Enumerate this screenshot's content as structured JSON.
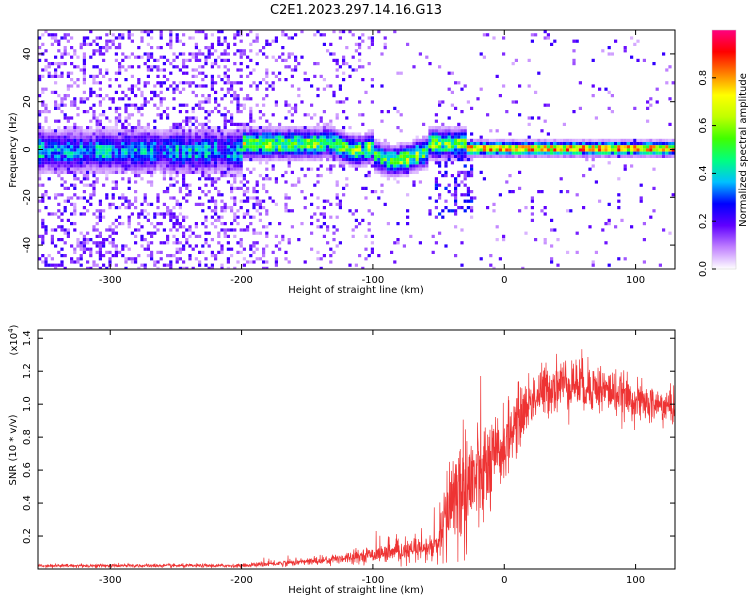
{
  "figure": {
    "title": "C2E1.2023.297.14.16.G13"
  },
  "chart_data": [
    {
      "type": "heatmap",
      "xlabel": "Height of straight line (km)",
      "ylabel": "Frequency (Hz)",
      "xlim": [
        -355,
        130
      ],
      "ylim": [
        -50,
        50
      ],
      "xticks": [
        -300,
        -200,
        -100,
        0,
        100
      ],
      "yticks": [
        -40,
        -20,
        0,
        20,
        40
      ],
      "colorbar": {
        "label": "Normalized spectral amplitude",
        "range": [
          0,
          1
        ],
        "ticks": [
          0.0,
          0.2,
          0.4,
          0.6,
          0.8
        ],
        "colors": [
          "#ffffff",
          "#c080ff",
          "#6000ff",
          "#0000ff",
          "#00c0ff",
          "#00ff80",
          "#40ff00",
          "#c0ff00",
          "#ffff00",
          "#ff8000",
          "#ff0000",
          "#ff0080"
        ]
      }
    },
    {
      "type": "line",
      "xlabel": "Height of straight line (km)",
      "ylabel": "SNR (10 * v/v)",
      "y_multiplier": "(x10",
      "y_multiplier_exp": "4",
      "y_multiplier_close": ")",
      "xlim": [
        -355,
        130
      ],
      "ylim": [
        0,
        1.45
      ],
      "xticks": [
        -300,
        -200,
        -100,
        0,
        100
      ],
      "yticks": [
        0.2,
        0.4,
        0.6,
        0.8,
        1.0,
        1.2,
        1.4
      ],
      "color": "#ee3333",
      "trend": {
        "x": [
          -355,
          -300,
          -250,
          -200,
          -180,
          -160,
          -140,
          -120,
          -100,
          -80,
          -60,
          -50,
          -45,
          -40,
          -30,
          -20,
          -10,
          0,
          10,
          20,
          30,
          40,
          50,
          60,
          70,
          80,
          90,
          100,
          110,
          120,
          130
        ],
        "y": [
          0.02,
          0.02,
          0.02,
          0.02,
          0.03,
          0.04,
          0.05,
          0.07,
          0.09,
          0.1,
          0.12,
          0.14,
          0.3,
          0.45,
          0.5,
          0.55,
          0.62,
          0.75,
          0.9,
          1.02,
          1.08,
          1.12,
          1.13,
          1.12,
          1.1,
          1.08,
          1.05,
          1.02,
          1.0,
          0.99,
          0.98
        ]
      },
      "noise": {
        "x": [
          -355,
          -200,
          -150,
          -100,
          -60,
          -50,
          -45,
          -40,
          -30,
          -20,
          -10,
          0,
          20,
          40,
          60,
          80,
          100,
          130
        ],
        "amp": [
          0.01,
          0.01,
          0.02,
          0.04,
          0.07,
          0.1,
          0.25,
          0.32,
          0.36,
          0.32,
          0.26,
          0.2,
          0.15,
          0.15,
          0.15,
          0.13,
          0.11,
          0.1
        ]
      }
    }
  ]
}
